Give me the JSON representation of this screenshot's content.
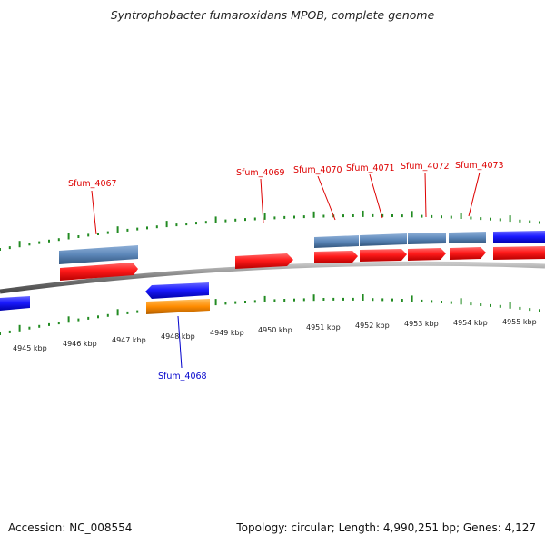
{
  "title": "Syntrophobacter fumaroxidans MPOB, complete genome",
  "footer": {
    "accession": "Accession: NC_008554",
    "topology": "Topology: circular; Length: 4,990,251 bp; Genes: 4,127"
  },
  "colors": {
    "forward_cds": "#ff1a1a",
    "reverse_cds": "#1a1aff",
    "forward_gene_bar": "#5b86b8",
    "reverse_gene_bar": "#ff8c00",
    "backbone": "#8a8a8a",
    "ticks": "#228b22",
    "label_red": "#dd0000",
    "label_blue": "#0000cc"
  },
  "kbp_ticks": [
    "4945 kbp",
    "4946 kbp",
    "4947 kbp",
    "4948 kbp",
    "4949 kbp",
    "4950 kbp",
    "4951 kbp",
    "4952 kbp",
    "4953 kbp",
    "4954 kbp",
    "4955 kbp"
  ],
  "genes": [
    {
      "id": "Sfum_4067",
      "strand": "forward",
      "label_color": "red"
    },
    {
      "id": "Sfum_4068",
      "strand": "reverse",
      "label_color": "blue"
    },
    {
      "id": "Sfum_4069",
      "strand": "forward",
      "label_color": "red"
    },
    {
      "id": "Sfum_4070",
      "strand": "forward",
      "label_color": "red"
    },
    {
      "id": "Sfum_4071",
      "strand": "forward",
      "label_color": "red"
    },
    {
      "id": "Sfum_4072",
      "strand": "forward",
      "label_color": "red"
    },
    {
      "id": "Sfum_4073",
      "strand": "forward",
      "label_color": "red"
    }
  ]
}
